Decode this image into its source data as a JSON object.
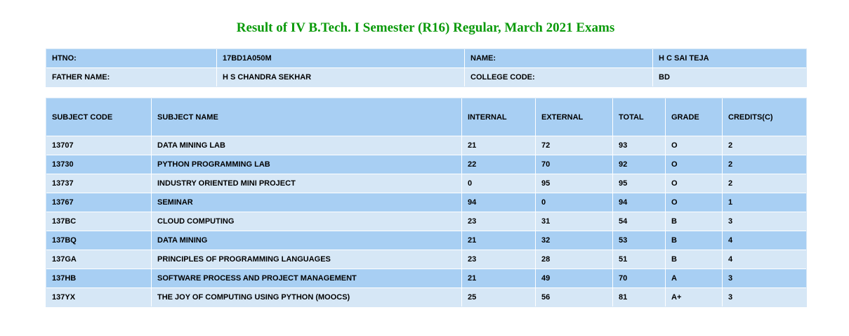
{
  "page": {
    "title": "Result of IV B.Tech. I Semester (R16) Regular, March 2021 Exams",
    "title_color": "#0a9a0a"
  },
  "student": {
    "htno_label": "HTNO:",
    "htno": "17BD1A050M",
    "name_label": "NAME:",
    "name": "H C SAI TEJA",
    "father_label": "FATHER NAME:",
    "father": "H S CHANDRA SEKHAR",
    "college_label": "COLLEGE CODE:",
    "college": "BD"
  },
  "results": {
    "headers": [
      "SUBJECT CODE",
      "SUBJECT NAME",
      "INTERNAL",
      "EXTERNAL",
      "TOTAL",
      "GRADE",
      "CREDITS(C)"
    ],
    "rows": [
      {
        "code": "13707",
        "name": "DATA MINING LAB",
        "internal": "21",
        "external": "72",
        "total": "93",
        "grade": "O",
        "credits": "2"
      },
      {
        "code": "13730",
        "name": "PYTHON PROGRAMMING LAB",
        "internal": "22",
        "external": "70",
        "total": "92",
        "grade": "O",
        "credits": "2"
      },
      {
        "code": "13737",
        "name": "INDUSTRY ORIENTED MINI PROJECT",
        "internal": "0",
        "external": "95",
        "total": "95",
        "grade": "O",
        "credits": "2"
      },
      {
        "code": "13767",
        "name": "SEMINAR",
        "internal": "94",
        "external": "0",
        "total": "94",
        "grade": "O",
        "credits": "1"
      },
      {
        "code": "137BC",
        "name": "CLOUD COMPUTING",
        "internal": "23",
        "external": "31",
        "total": "54",
        "grade": "B",
        "credits": "3"
      },
      {
        "code": "137BQ",
        "name": "DATA MINING",
        "internal": "21",
        "external": "32",
        "total": "53",
        "grade": "B",
        "credits": "4"
      },
      {
        "code": "137GA",
        "name": "PRINCIPLES OF PROGRAMMING LANGUAGES",
        "internal": "23",
        "external": "28",
        "total": "51",
        "grade": "B",
        "credits": "4"
      },
      {
        "code": "137HB",
        "name": "SOFTWARE PROCESS AND PROJECT MANAGEMENT",
        "internal": "21",
        "external": "49",
        "total": "70",
        "grade": "A",
        "credits": "3"
      },
      {
        "code": "137YX",
        "name": "THE JOY OF COMPUTING USING PYTHON (MOOCS)",
        "internal": "25",
        "external": "56",
        "total": "81",
        "grade": "A+",
        "credits": "3"
      }
    ]
  },
  "colors": {
    "row_dark": "#a8cff3",
    "row_light": "#d6e7f6"
  }
}
